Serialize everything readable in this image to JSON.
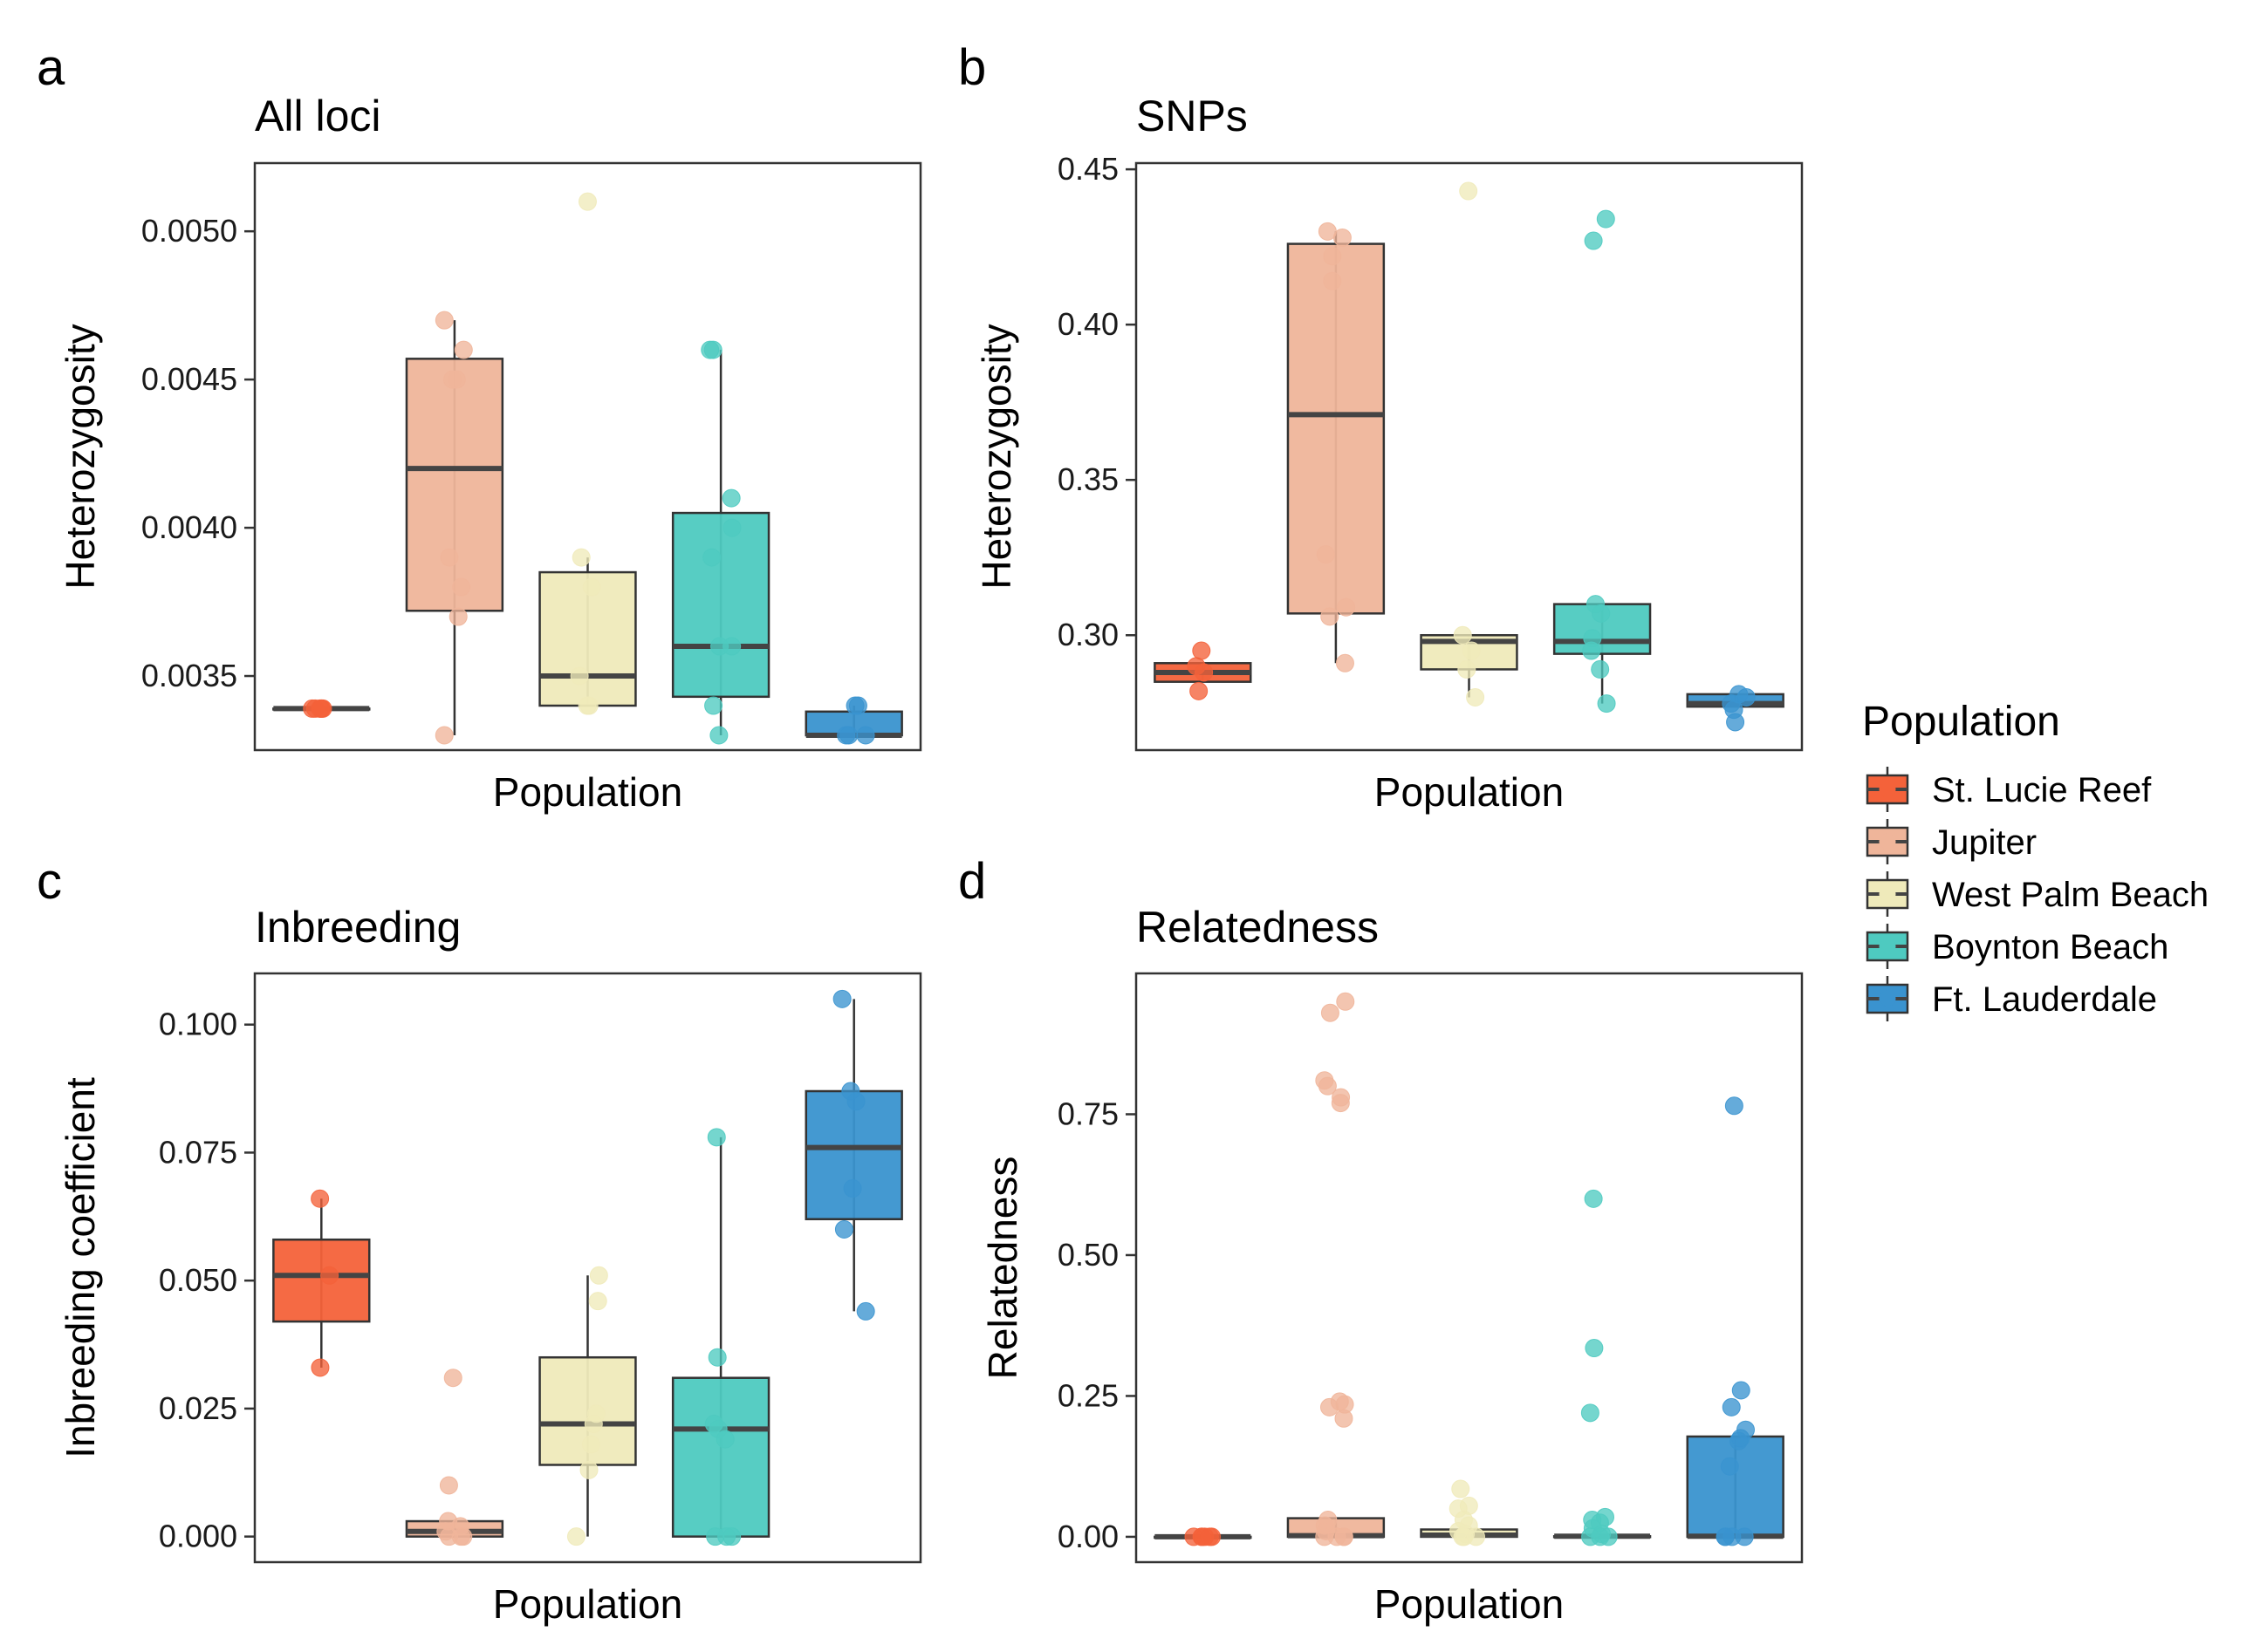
{
  "legend": {
    "title": "Population",
    "entries": [
      {
        "label": "St. Lucie Reef",
        "color": "#F4623A"
      },
      {
        "label": "Jupiter",
        "color": "#EFB59A"
      },
      {
        "label": "West Palm Beach",
        "color": "#EFEABA"
      },
      {
        "label": "Boynton Beach",
        "color": "#4ECAC0"
      },
      {
        "label": "Ft. Lauderdale",
        "color": "#3A93CF"
      }
    ]
  },
  "chart_data": [
    {
      "letter": "a",
      "type": "box",
      "title": "All loci",
      "xlabel": "Population",
      "ylabel": "Heterozygosity",
      "ylim": [
        0.00325,
        0.00523
      ],
      "yticks": [
        0.0035,
        0.004,
        0.0045,
        0.005
      ],
      "ytick_labels": [
        "0.0035",
        "0.0040",
        "0.0045",
        "0.0050"
      ],
      "groups": [
        {
          "population": "St. Lucie Reef",
          "q1": 0.00339,
          "median": 0.00339,
          "q3": 0.00339,
          "whisker_low": 0.00339,
          "whisker_high": 0.00339,
          "points": [
            0.00339,
            0.00339,
            0.00339,
            0.00339,
            0.00339,
            0.00339
          ]
        },
        {
          "population": "Jupiter",
          "q1": 0.00372,
          "median": 0.0042,
          "q3": 0.00457,
          "whisker_low": 0.0033,
          "whisker_high": 0.0047,
          "points": [
            0.0047,
            0.0046,
            0.0045,
            0.0045,
            0.0039,
            0.0038,
            0.0037,
            0.0033
          ]
        },
        {
          "population": "West Palm Beach",
          "q1": 0.0034,
          "median": 0.0035,
          "q3": 0.00385,
          "whisker_low": 0.0034,
          "whisker_high": 0.0039,
          "points": [
            0.0051,
            0.0039,
            0.0038,
            0.0035,
            0.0034,
            0.0034
          ]
        },
        {
          "population": "Boynton Beach",
          "q1": 0.00343,
          "median": 0.0036,
          "q3": 0.00405,
          "whisker_low": 0.0033,
          "whisker_high": 0.0046,
          "points": [
            0.0046,
            0.0046,
            0.0041,
            0.004,
            0.0039,
            0.0036,
            0.0036,
            0.0034,
            0.0033
          ]
        },
        {
          "population": "Ft. Lauderdale",
          "q1": 0.0033,
          "median": 0.0033,
          "q3": 0.00338,
          "whisker_low": 0.0033,
          "whisker_high": 0.0034,
          "points": [
            0.0034,
            0.0034,
            0.0033,
            0.0033,
            0.0033
          ]
        }
      ]
    },
    {
      "letter": "b",
      "type": "box",
      "title": "SNPs",
      "xlabel": "Population",
      "ylabel": "Heterozygosity",
      "ylim": [
        0.263,
        0.452
      ],
      "yticks": [
        0.3,
        0.35,
        0.4,
        0.45
      ],
      "ytick_labels": [
        "0.30",
        "0.35",
        "0.40",
        "0.45"
      ],
      "groups": [
        {
          "population": "St. Lucie Reef",
          "q1": 0.285,
          "median": 0.288,
          "q3": 0.291,
          "whisker_low": 0.285,
          "whisker_high": 0.291,
          "points": [
            0.295,
            0.29,
            0.288,
            0.282
          ]
        },
        {
          "population": "Jupiter",
          "q1": 0.307,
          "median": 0.371,
          "q3": 0.426,
          "whisker_low": 0.291,
          "whisker_high": 0.43,
          "points": [
            0.43,
            0.428,
            0.422,
            0.414,
            0.326,
            0.309,
            0.306,
            0.291
          ]
        },
        {
          "population": "West Palm Beach",
          "q1": 0.289,
          "median": 0.298,
          "q3": 0.3,
          "whisker_low": 0.28,
          "whisker_high": 0.3,
          "points": [
            0.443,
            0.3,
            0.295,
            0.289,
            0.28
          ]
        },
        {
          "population": "Boynton Beach",
          "q1": 0.294,
          "median": 0.298,
          "q3": 0.31,
          "whisker_low": 0.278,
          "whisker_high": 0.31,
          "points": [
            0.434,
            0.427,
            0.31,
            0.307,
            0.299,
            0.295,
            0.289,
            0.278
          ]
        },
        {
          "population": "Ft. Lauderdale",
          "q1": 0.277,
          "median": 0.278,
          "q3": 0.281,
          "whisker_low": 0.277,
          "whisker_high": 0.281,
          "points": [
            0.281,
            0.28,
            0.278,
            0.276,
            0.272
          ]
        }
      ]
    },
    {
      "letter": "c",
      "type": "box",
      "title": "Inbreeding",
      "xlabel": "Population",
      "ylabel": "Inbreeding coefficient",
      "ylim": [
        -0.005,
        0.11
      ],
      "yticks": [
        0.0,
        0.025,
        0.05,
        0.075,
        0.1
      ],
      "ytick_labels": [
        "0.000",
        "0.025",
        "0.050",
        "0.075",
        "0.100"
      ],
      "groups": [
        {
          "population": "St. Lucie Reef",
          "q1": 0.042,
          "median": 0.051,
          "q3": 0.058,
          "whisker_low": 0.033,
          "whisker_high": 0.066,
          "points": [
            0.066,
            0.051,
            0.033
          ]
        },
        {
          "population": "Jupiter",
          "q1": 0.0,
          "median": 0.001,
          "q3": 0.003,
          "whisker_low": 0.0,
          "whisker_high": 0.003,
          "points": [
            0.031,
            0.01,
            0.003,
            0.002,
            0.001,
            0.0,
            0.0,
            0.0
          ]
        },
        {
          "population": "West Palm Beach",
          "q1": 0.014,
          "median": 0.022,
          "q3": 0.035,
          "whisker_low": 0.0,
          "whisker_high": 0.051,
          "points": [
            0.051,
            0.046,
            0.024,
            0.022,
            0.018,
            0.013,
            0.0
          ]
        },
        {
          "population": "Boynton Beach",
          "q1": 0.0,
          "median": 0.021,
          "q3": 0.031,
          "whisker_low": 0.0,
          "whisker_high": 0.078,
          "points": [
            0.078,
            0.035,
            0.022,
            0.021,
            0.019,
            0.0,
            0.0,
            0.0
          ]
        },
        {
          "population": "Ft. Lauderdale",
          "q1": 0.062,
          "median": 0.076,
          "q3": 0.087,
          "whisker_low": 0.044,
          "whisker_high": 0.105,
          "points": [
            0.105,
            0.087,
            0.085,
            0.068,
            0.06,
            0.044
          ]
        }
      ]
    },
    {
      "letter": "d",
      "type": "box",
      "title": "Relatedness",
      "xlabel": "Population",
      "ylabel": "Relatedness",
      "ylim": [
        -0.045,
        1.0
      ],
      "yticks": [
        0.0,
        0.25,
        0.5,
        0.75
      ],
      "ytick_labels": [
        "0.00",
        "0.25",
        "0.50",
        "0.75"
      ],
      "groups": [
        {
          "population": "St. Lucie Reef",
          "q1": 0.0,
          "median": 0.0,
          "q3": 0.0,
          "whisker_low": 0.0,
          "whisker_high": 0.0,
          "points": [
            0.0,
            0.0,
            0.0,
            0.0,
            0.0,
            0.0
          ]
        },
        {
          "population": "Jupiter",
          "q1": 0.0,
          "median": 0.002,
          "q3": 0.033,
          "whisker_low": 0.0,
          "whisker_high": 0.033,
          "points": [
            0.95,
            0.93,
            0.81,
            0.8,
            0.78,
            0.77,
            0.24,
            0.235,
            0.23,
            0.21,
            0.03,
            0.02,
            0.01,
            0.0,
            0.0,
            0.0,
            0.0
          ]
        },
        {
          "population": "West Palm Beach",
          "q1": 0.0,
          "median": 0.003,
          "q3": 0.013,
          "whisker_low": 0.0,
          "whisker_high": 0.013,
          "points": [
            0.085,
            0.055,
            0.05,
            0.03,
            0.02,
            0.01,
            0.005,
            0.0,
            0.0,
            0.0
          ]
        },
        {
          "population": "Boynton Beach",
          "q1": 0.0,
          "median": 0.001,
          "q3": 0.001,
          "whisker_low": 0.0,
          "whisker_high": 0.001,
          "points": [
            0.6,
            0.335,
            0.22,
            0.035,
            0.03,
            0.025,
            0.015,
            0.005,
            0.0,
            0.0,
            0.0
          ]
        },
        {
          "population": "Ft. Lauderdale",
          "q1": 0.0,
          "median": 0.001,
          "q3": 0.178,
          "whisker_low": 0.0,
          "whisker_high": 0.178,
          "points": [
            0.765,
            0.26,
            0.23,
            0.19,
            0.175,
            0.17,
            0.125,
            0.0,
            0.0,
            0.0,
            0.0
          ]
        }
      ]
    }
  ]
}
